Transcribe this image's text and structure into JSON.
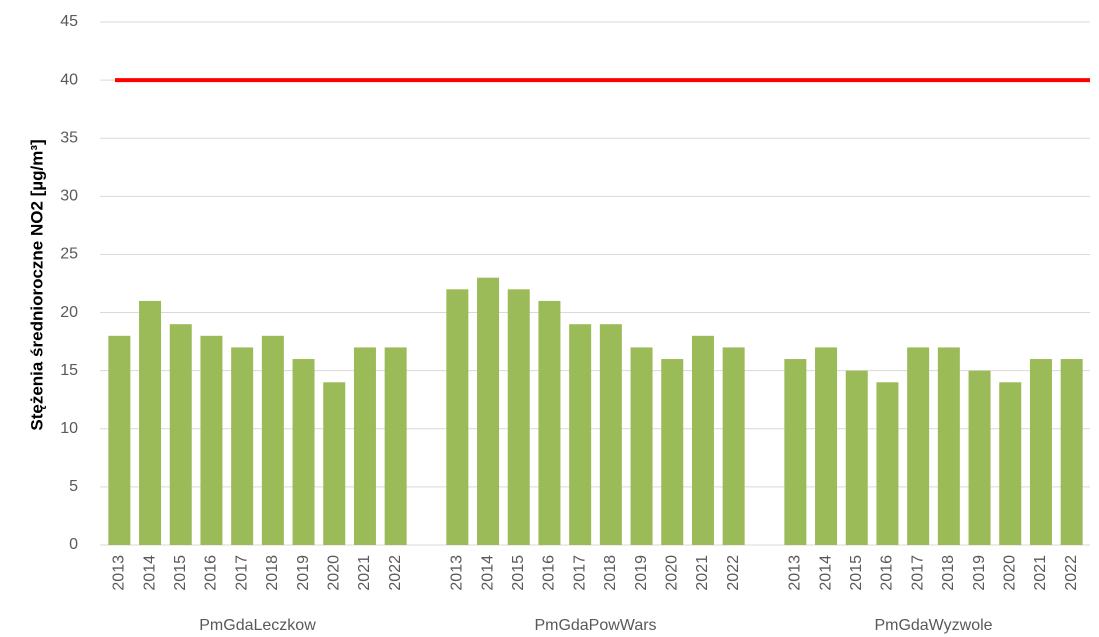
{
  "chart_data": {
    "type": "bar",
    "y_label": "Stężenia średnioroczne NO2 [µg/m³]",
    "color": "#9bbb59",
    "groups": [
      {
        "name": "PmGdaLeczkow",
        "categories": [
          "2013",
          "2014",
          "2015",
          "2016",
          "2017",
          "2018",
          "2019",
          "2020",
          "2021",
          "2022"
        ],
        "values": [
          18,
          21,
          19,
          18,
          17,
          18,
          16,
          14,
          17,
          17
        ]
      },
      {
        "name": "PmGdaPowWars",
        "categories": [
          "2013",
          "2014",
          "2015",
          "2016",
          "2017",
          "2018",
          "2019",
          "2020",
          "2021",
          "2022"
        ],
        "values": [
          22,
          23,
          22,
          21,
          19,
          19,
          17,
          16,
          18,
          17
        ]
      },
      {
        "name": "PmGdaWyzwole",
        "categories": [
          "2013",
          "2014",
          "2015",
          "2016",
          "2017",
          "2018",
          "2019",
          "2020",
          "2021",
          "2022"
        ],
        "values": [
          16,
          17,
          15,
          14,
          17,
          17,
          15,
          14,
          16,
          16
        ]
      }
    ],
    "reference_lines": [
      {
        "value": 40,
        "color": "#ff0000"
      }
    ],
    "ylim": [
      0,
      45
    ],
    "yticks": [
      0,
      5,
      10,
      15,
      20,
      25,
      30,
      35,
      40,
      45
    ],
    "grid": true
  }
}
